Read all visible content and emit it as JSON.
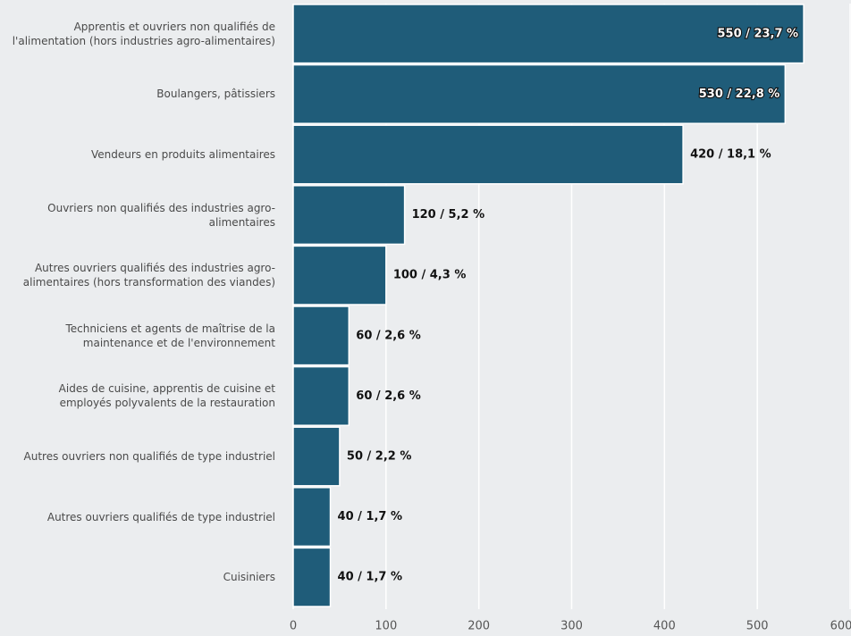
{
  "chart_data": {
    "type": "hbar",
    "categories": [
      "Apprentis et ouvriers non qualifiés de l'alimentation (hors industries agro-alimentaires)",
      "Boulangers, pâtissiers",
      "Vendeurs en produits alimentaires",
      "Ouvriers non qualifiés des industries agro-alimentaires",
      "Autres ouvriers qualifiés des industries agro-alimentaires (hors transformation des viandes)",
      "Techniciens et agents de maîtrise de la maintenance et de l'environnement",
      "Aides de cuisine, apprentis de cuisine et employés polyvalents de la restauration",
      "Autres ouvriers non qualifiés de type industriel",
      "Autres ouvriers qualifiés de type industriel",
      "Cuisiniers"
    ],
    "values": [
      550,
      530,
      420,
      120,
      100,
      60,
      60,
      50,
      40,
      40
    ],
    "value_labels": [
      "550 / 23,7 %",
      "530 / 22,8 %",
      "420 / 18,1 %",
      "120 / 5,2 %",
      "100 / 4,3 %",
      "60 / 2,6 %",
      "60 / 2,6 %",
      "50 / 2,2 %",
      "40 / 1,7 %",
      "40 / 1,7 %"
    ],
    "color": "#1f5c79",
    "xlim": [
      0,
      600
    ],
    "xticks": [
      0,
      100,
      200,
      300,
      400,
      500,
      600
    ],
    "grid": true
  }
}
